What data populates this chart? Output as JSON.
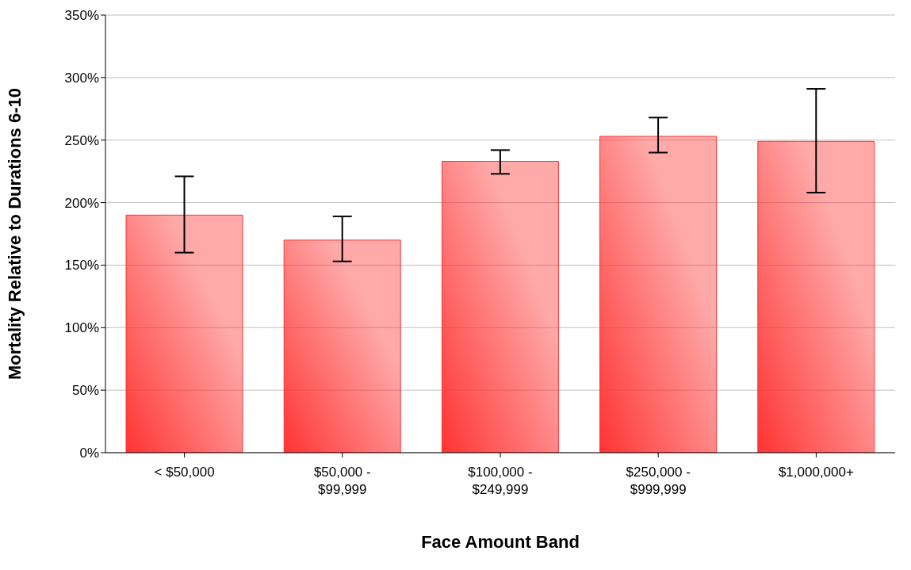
{
  "chart_data": {
    "type": "bar",
    "xlabel": "Face Amount Band",
    "ylabel": "Mortality Relative to Durations 6-10",
    "categories": [
      "< $50,000",
      "$50,000 -\n$99,999",
      "$100,000 -\n$249,999",
      "$250,000 -\n$999,999",
      "$1,000,000+"
    ],
    "values": [
      190,
      170,
      233,
      253,
      249
    ],
    "errors": [
      [
        160,
        221
      ],
      [
        153,
        189
      ],
      [
        223,
        242
      ],
      [
        240,
        268
      ],
      [
        208,
        291
      ]
    ],
    "color": "#ff3333",
    "ylim": [
      0,
      350
    ],
    "yticks": [
      {
        "value": 0,
        "label": "0%"
      },
      {
        "value": 50,
        "label": "50%"
      },
      {
        "value": 100,
        "label": "100%"
      },
      {
        "value": 150,
        "label": "150%"
      },
      {
        "value": 200,
        "label": "200%"
      },
      {
        "value": 250,
        "label": "250%"
      },
      {
        "value": 300,
        "label": "300%"
      },
      {
        "value": 350,
        "label": "350%"
      }
    ],
    "grid": "y",
    "legend": false
  }
}
